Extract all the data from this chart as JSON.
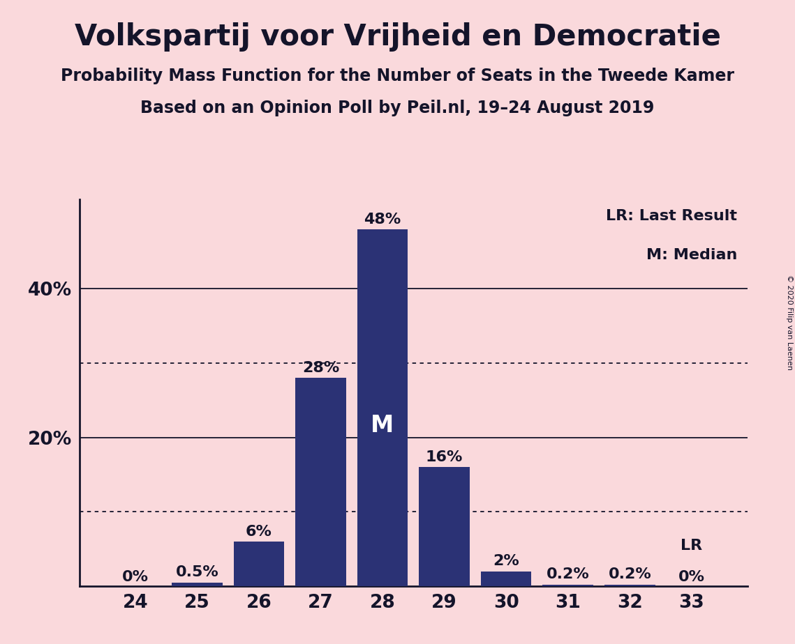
{
  "title": "Volkspartij voor Vrijheid en Democratie",
  "subtitle1": "Probability Mass Function for the Number of Seats in the Tweede Kamer",
  "subtitle2": "Based on an Opinion Poll by Peil.nl, 19–24 August 2019",
  "copyright": "© 2020 Filip van Laenen",
  "categories": [
    24,
    25,
    26,
    27,
    28,
    29,
    30,
    31,
    32,
    33
  ],
  "values": [
    0.0,
    0.5,
    6.0,
    28.0,
    48.0,
    16.0,
    2.0,
    0.2,
    0.2,
    0.0
  ],
  "bar_labels": [
    "0%",
    "0.5%",
    "6%",
    "28%",
    "48%",
    "16%",
    "2%",
    "0.2%",
    "0.2%",
    "0%"
  ],
  "bar_color": "#2B3275",
  "background_color": "#FAD9DC",
  "text_color": "#14142a",
  "median_bar_index": 4,
  "median_label": "M",
  "lr_bar_index": 9,
  "lr_label": "LR",
  "legend_lr": "LR: Last Result",
  "legend_m": "M: Median",
  "dotted_lines": [
    10,
    30
  ],
  "solid_lines": [
    20,
    40
  ],
  "ylim": [
    0,
    52
  ],
  "title_fontsize": 30,
  "subtitle_fontsize": 17,
  "label_fontsize": 16,
  "tick_fontsize": 19,
  "legend_fontsize": 16
}
